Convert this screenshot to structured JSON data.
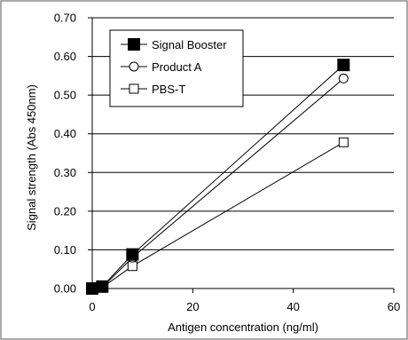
{
  "chart_data": {
    "type": "line",
    "title": "",
    "xlabel": "Antigen concentration (ng/ml)",
    "ylabel": "Signal strength (Abs 450nm)",
    "xlim": [
      0,
      60
    ],
    "ylim": [
      0,
      0.7
    ],
    "xticks": [
      0,
      20,
      40,
      60
    ],
    "xtick_labels": [
      "0",
      "20",
      "40",
      "60"
    ],
    "yticks": [
      0,
      0.1,
      0.2,
      0.3,
      0.4,
      0.5,
      0.6,
      0.7
    ],
    "ytick_labels": [
      "0.00",
      "0.10",
      "0.20",
      "0.30",
      "0.40",
      "0.50",
      "0.60",
      "0.70"
    ],
    "grid": "horizontal",
    "legend_position": "top-left",
    "series": [
      {
        "name": "Signal Booster",
        "marker": "filled-square",
        "color": "#000000",
        "x": [
          0,
          2,
          8,
          50
        ],
        "y": [
          0.0,
          0.005,
          0.088,
          0.578
        ]
      },
      {
        "name": "Product A",
        "marker": "open-circle",
        "color": "#000000",
        "x": [
          0,
          2,
          8,
          50
        ],
        "y": [
          0.0,
          0.003,
          0.08,
          0.543
        ]
      },
      {
        "name": "PBS-T",
        "marker": "open-square",
        "color": "#000000",
        "x": [
          0,
          2,
          8,
          50
        ],
        "y": [
          0.0,
          0.003,
          0.058,
          0.378
        ]
      }
    ]
  }
}
